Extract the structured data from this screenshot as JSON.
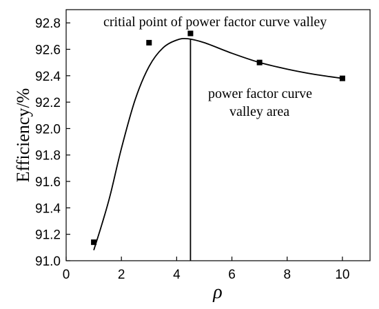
{
  "chart_data": {
    "type": "scatter",
    "xlabel": "ρ",
    "ylabel": "Efficiency/%",
    "xlim": [
      0,
      11
    ],
    "ylim": [
      91.0,
      92.9
    ],
    "x_ticks": [
      0,
      2,
      4,
      6,
      8,
      10
    ],
    "y_ticks": [
      91.0,
      91.2,
      91.4,
      91.6,
      91.8,
      92.0,
      92.2,
      92.4,
      92.6,
      92.8
    ],
    "x_tick_labels": [
      "0",
      "2",
      "4",
      "6",
      "8",
      "10"
    ],
    "y_tick_labels": [
      "91.0",
      "91.2",
      "91.4",
      "91.6",
      "91.8",
      "92.0",
      "92.2",
      "92.4",
      "92.6",
      "92.8"
    ],
    "points": [
      {
        "x": 1,
        "y": 91.14
      },
      {
        "x": 3,
        "y": 92.65
      },
      {
        "x": 4.5,
        "y": 92.72
      },
      {
        "x": 7,
        "y": 92.5
      },
      {
        "x": 10,
        "y": 92.38
      }
    ],
    "fit_curve": [
      {
        "x": 1.0,
        "y": 91.08
      },
      {
        "x": 1.3,
        "y": 91.28
      },
      {
        "x": 1.6,
        "y": 91.5
      },
      {
        "x": 2.0,
        "y": 91.85
      },
      {
        "x": 2.5,
        "y": 92.22
      },
      {
        "x": 3.0,
        "y": 92.47
      },
      {
        "x": 3.5,
        "y": 92.61
      },
      {
        "x": 4.0,
        "y": 92.67
      },
      {
        "x": 4.4,
        "y": 92.68
      },
      {
        "x": 5.0,
        "y": 92.65
      },
      {
        "x": 6.0,
        "y": 92.57
      },
      {
        "x": 7.0,
        "y": 92.5
      },
      {
        "x": 8.0,
        "y": 92.45
      },
      {
        "x": 9.0,
        "y": 92.41
      },
      {
        "x": 10.0,
        "y": 92.38
      }
    ],
    "critical_x": 4.5,
    "annotations": [
      {
        "text": "critial point of power factor curve valley"
      },
      {
        "text": "power factor curve"
      },
      {
        "text": "valley area"
      }
    ],
    "grid": false,
    "legend": "none"
  }
}
